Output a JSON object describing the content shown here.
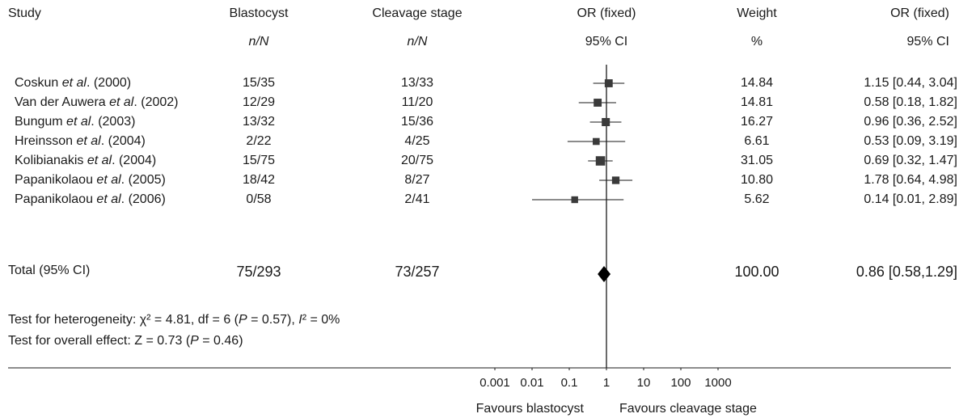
{
  "chart_data": {
    "type": "forest",
    "header": {
      "study": "Study",
      "blast": "Blastocyst",
      "blast_sub": "n/N",
      "cleav": "Cleavage stage",
      "cleav_sub": "n/N",
      "or": "OR (fixed)",
      "or_sub": "95% CI",
      "weight": "Weight",
      "weight_sub": "%",
      "or2": "OR (fixed)",
      "or2_sub": "95% CI"
    },
    "studies": [
      {
        "author": "Coskun ",
        "etal": "et al",
        "suffix": ". (2000)",
        "blast": "15/35",
        "cleav": "13/33",
        "weight": "14.84",
        "or_text": "1.15 [0.44, 3.04]",
        "or": 1.15,
        "lo": 0.44,
        "hi": 3.04,
        "w": 14.84
      },
      {
        "author": "Van der Auwera ",
        "etal": "et al",
        "suffix": ". (2002)",
        "blast": "12/29",
        "cleav": "11/20",
        "weight": "14.81",
        "or_text": "0.58 [0.18, 1.82]",
        "or": 0.58,
        "lo": 0.18,
        "hi": 1.82,
        "w": 14.81
      },
      {
        "author": "Bungum ",
        "etal": "et al",
        "suffix": ". (2003)",
        "blast": "13/32",
        "cleav": "15/36",
        "weight": "16.27",
        "or_text": "0.96 [0.36, 2.52]",
        "or": 0.96,
        "lo": 0.36,
        "hi": 2.52,
        "w": 16.27
      },
      {
        "author": "Hreinsson ",
        "etal": "et al",
        "suffix": ". (2004)",
        "blast": "2/22",
        "cleav": "4/25",
        "weight": "6.61",
        "or_text": "0.53 [0.09, 3.19]",
        "or": 0.53,
        "lo": 0.09,
        "hi": 3.19,
        "w": 6.61
      },
      {
        "author": "Kolibianakis ",
        "etal": "et al",
        "suffix": ". (2004)",
        "blast": "15/75",
        "cleav": "20/75",
        "weight": "31.05",
        "or_text": "0.69 [0.32, 1.47]",
        "or": 0.69,
        "lo": 0.32,
        "hi": 1.47,
        "w": 31.05
      },
      {
        "author": "Papanikolaou ",
        "etal": "et al",
        "suffix": ". (2005)",
        "blast": "18/42",
        "cleav": "8/27",
        "weight": "10.80",
        "or_text": "1.78 [0.64, 4.98]",
        "or": 1.78,
        "lo": 0.64,
        "hi": 4.98,
        "w": 10.8
      },
      {
        "author": "Papanikolaou ",
        "etal": "et al",
        "suffix": ". (2006)",
        "blast": "0/58",
        "cleav": "2/41",
        "weight": "5.62",
        "or_text": "0.14 [0.01, 2.89]",
        "or": 0.14,
        "lo": 0.01,
        "hi": 2.89,
        "w": 5.62
      }
    ],
    "total": {
      "label": "Total (95% CI)",
      "blast": "75/293",
      "cleav": "73/257",
      "weight": "100.00",
      "or_text": "0.86 [0.58,1.29]",
      "or": 0.86,
      "lo": 0.58,
      "hi": 1.29
    },
    "heterogeneity": {
      "p1": "Test for heterogeneity: χ² = 4.81, df = 6 (",
      "P": "P",
      "p2": " = 0.57), ",
      "I": "I",
      "p3": "² = 0%"
    },
    "overall": {
      "p1": "Test for overall effect: Z = 0.73 (",
      "P": "P",
      "p2": " = 0.46)"
    },
    "x_scale": "log",
    "xlim": [
      0.001,
      1000
    ],
    "x_ticks": [
      0.001,
      0.01,
      0.1,
      1,
      10,
      100,
      1000
    ],
    "x_tick_labels": [
      "0.001",
      "0.01",
      "0.1",
      "1",
      "10",
      "100",
      "1000"
    ],
    "favours_left": "Favours blastocyst",
    "favours_right": "Favours cleavage stage",
    "colors": {
      "marker": "#3a3a3a",
      "line": "#1a1a1a"
    }
  }
}
